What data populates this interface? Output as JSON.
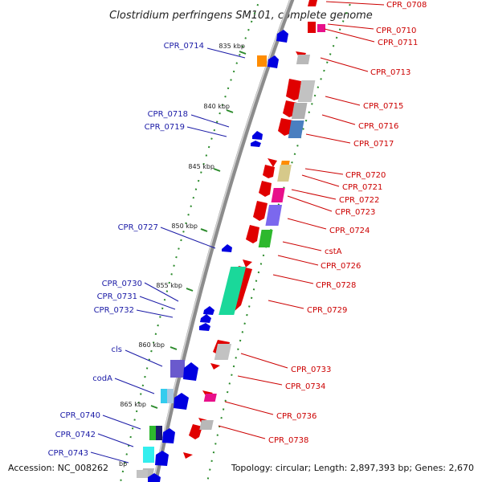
{
  "title": "Clostridium perfringens SM101, complete genome",
  "footer": {
    "accession": "Accession: NC_008262",
    "topology": "Topology: circular; Length: 2,897,393 bp; Genes: 2,670",
    "bp_unit": "bp"
  },
  "kbp_markers": [
    {
      "label": "835 kbp"
    },
    {
      "label": "840 kbp"
    },
    {
      "label": "845 kbp"
    },
    {
      "label": "850 kbp"
    },
    {
      "label": "855 kbp"
    },
    {
      "label": "860 kbp"
    },
    {
      "label": "865 kbp"
    }
  ],
  "genes_left": [
    {
      "label": "CPR_0714",
      "color": "#1a1aa6"
    },
    {
      "label": "CPR_0718",
      "color": "#1a1aa6"
    },
    {
      "label": "CPR_0719",
      "color": "#1a1aa6"
    },
    {
      "label": "CPR_0727",
      "color": "#1a1aa6"
    },
    {
      "label": "CPR_0730",
      "color": "#1a1aa6"
    },
    {
      "label": "CPR_0731",
      "color": "#1a1aa6"
    },
    {
      "label": "CPR_0732",
      "color": "#1a1aa6"
    },
    {
      "label": "cls",
      "color": "#1a1aa6"
    },
    {
      "label": "codA",
      "color": "#1a1aa6"
    },
    {
      "label": "CPR_0740",
      "color": "#1a1aa6"
    },
    {
      "label": "CPR_0742",
      "color": "#1a1aa6"
    },
    {
      "label": "CPR_0743",
      "color": "#1a1aa6"
    }
  ],
  "genes_right": [
    {
      "label": "CPR_0708",
      "color": "#cc0000"
    },
    {
      "label": "CPR_0710",
      "color": "#cc0000"
    },
    {
      "label": "CPR_0711",
      "color": "#cc0000"
    },
    {
      "label": "CPR_0713",
      "color": "#cc0000"
    },
    {
      "label": "CPR_0715",
      "color": "#cc0000"
    },
    {
      "label": "CPR_0716",
      "color": "#cc0000"
    },
    {
      "label": "CPR_0717",
      "color": "#cc0000"
    },
    {
      "label": "CPR_0720",
      "color": "#cc0000"
    },
    {
      "label": "CPR_0721",
      "color": "#cc0000"
    },
    {
      "label": "CPR_0722",
      "color": "#cc0000"
    },
    {
      "label": "CPR_0723",
      "color": "#cc0000"
    },
    {
      "label": "CPR_0724",
      "color": "#cc0000"
    },
    {
      "label": "cstA",
      "color": "#cc0000"
    },
    {
      "label": "CPR_0726",
      "color": "#cc0000"
    },
    {
      "label": "CPR_0728",
      "color": "#cc0000"
    },
    {
      "label": "CPR_0729",
      "color": "#cc0000"
    },
    {
      "label": "CPR_0733",
      "color": "#cc0000"
    },
    {
      "label": "CPR_0734",
      "color": "#cc0000"
    },
    {
      "label": "CPR_0736",
      "color": "#cc0000"
    },
    {
      "label": "CPR_0738",
      "color": "#cc0000"
    }
  ],
  "colors": {
    "backbone": "#8c8c8c",
    "forward_strand": "#e00000",
    "reverse_strand": "#0000e0",
    "tick": "#2a8a2a"
  }
}
